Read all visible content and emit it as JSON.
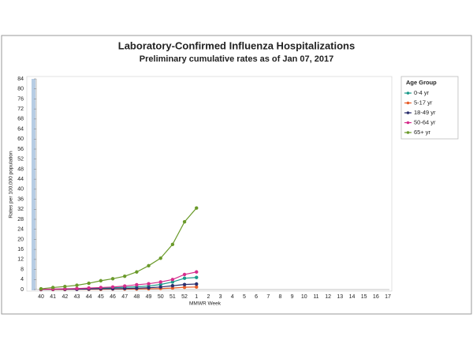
{
  "chart_data": {
    "type": "line",
    "title": "Laboratory-Confirmed Influenza Hospitalizations",
    "subtitle": "Preliminary cumulative rates as of Jan 07, 2017",
    "x_label": "MMWR Week",
    "y_label": "Rates per 100,000 population",
    "legend_title": "Age Group",
    "legend_position": "right",
    "categories": [
      "40",
      "41",
      "42",
      "43",
      "44",
      "45",
      "46",
      "47",
      "48",
      "49",
      "50",
      "51",
      "52",
      "1",
      "2",
      "3",
      "4",
      "5",
      "6",
      "7",
      "8",
      "9",
      "10",
      "11",
      "12",
      "13",
      "14",
      "15",
      "16",
      "17"
    ],
    "ylim": [
      0,
      84
    ],
    "yticks": [
      0,
      4,
      8,
      12,
      16,
      20,
      24,
      28,
      32,
      36,
      40,
      44,
      48,
      52,
      56,
      60,
      64,
      68,
      72,
      76,
      80,
      84
    ],
    "series": [
      {
        "name": "0-4 yr",
        "color": "#1a9a8a",
        "values": [
          0.1,
          0.1,
          0.2,
          0.3,
          0.4,
          0.5,
          0.7,
          0.9,
          1.1,
          1.4,
          2,
          3,
          4.5,
          4.8,
          null,
          null,
          null,
          null,
          null,
          null,
          null,
          null,
          null,
          null,
          null,
          null,
          null,
          null,
          null,
          null
        ]
      },
      {
        "name": "5-17 yr",
        "color": "#e8602c",
        "values": [
          0,
          0,
          0,
          0.1,
          0.1,
          0.1,
          0.2,
          0.2,
          0.2,
          0.3,
          0.4,
          0.6,
          0.9,
          1.0,
          null,
          null,
          null,
          null,
          null,
          null,
          null,
          null,
          null,
          null,
          null,
          null,
          null,
          null,
          null,
          null
        ]
      },
      {
        "name": "18-49 yr",
        "color": "#2b2f6e",
        "values": [
          0,
          0.1,
          0.1,
          0.1,
          0.2,
          0.3,
          0.3,
          0.4,
          0.5,
          0.7,
          1,
          1.5,
          2,
          2.2,
          null,
          null,
          null,
          null,
          null,
          null,
          null,
          null,
          null,
          null,
          null,
          null,
          null,
          null,
          null,
          null
        ]
      },
      {
        "name": "50-64 yr",
        "color": "#d62d8c",
        "values": [
          0.1,
          0.2,
          0.3,
          0.4,
          0.6,
          0.8,
          1,
          1.4,
          1.9,
          2.3,
          3,
          4,
          6,
          7,
          null,
          null,
          null,
          null,
          null,
          null,
          null,
          null,
          null,
          null,
          null,
          null,
          null,
          null,
          null,
          null
        ]
      },
      {
        "name": "65+ yr",
        "color": "#6a9a2a",
        "values": [
          0.3,
          0.8,
          1.2,
          1.7,
          2.5,
          3.5,
          4.3,
          5.3,
          7,
          9.5,
          12.5,
          18,
          27,
          32.5,
          null,
          null,
          null,
          null,
          null,
          null,
          null,
          null,
          null,
          null,
          null,
          null,
          null,
          null,
          null,
          null
        ]
      }
    ]
  }
}
